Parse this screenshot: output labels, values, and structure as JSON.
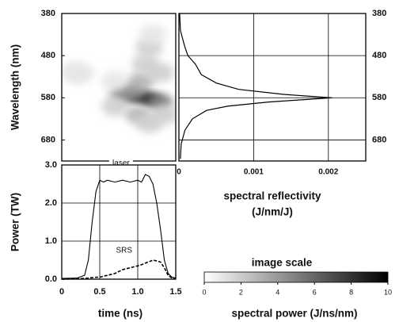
{
  "chart_data": [
    {
      "type": "heatmap",
      "ylabel": "Wavelength (nm)",
      "x": [
        1.1,
        1.0,
        1.2,
        0.9,
        0.8,
        1.3,
        0.95,
        1.05,
        1.1,
        1.15,
        1.2,
        1.0,
        1.15,
        0.7,
        0.7,
        1.3,
        1.35,
        0.15,
        0.25
      ],
      "y": [
        580,
        575,
        585,
        572,
        570,
        590,
        560,
        540,
        500,
        460,
        430,
        620,
        640,
        600,
        540,
        520,
        620,
        520,
        522
      ],
      "values": [
        10,
        9,
        8,
        7,
        5,
        5,
        4,
        3,
        2,
        2,
        1,
        3,
        2,
        2,
        1,
        2,
        2,
        1,
        1
      ],
      "xlim": [
        0,
        1.5
      ],
      "ylim": [
        380,
        730
      ],
      "yticks": [
        380,
        480,
        580,
        680
      ]
    },
    {
      "type": "profile",
      "xlabel": "spectral reflectivity",
      "xunits": "(J/nm/J)",
      "color": "#000000",
      "wavelength": [
        380,
        420,
        440,
        460,
        480,
        500,
        525,
        545,
        560,
        572,
        580,
        590,
        600,
        610,
        630,
        657,
        690,
        725
      ],
      "values": [
        1e-05,
        2e-05,
        5e-05,
        8e-05,
        0.00012,
        0.00022,
        0.0003,
        0.0005,
        0.0008,
        0.0014,
        0.00205,
        0.0012,
        0.00065,
        0.00037,
        0.00018,
        8e-05,
        3e-05,
        2e-05
      ],
      "xlim": [
        0,
        0.0025
      ],
      "xticks": [
        0,
        0.001,
        0.002
      ],
      "ylim": [
        380,
        730
      ],
      "yticks": [
        380,
        480,
        580,
        680
      ],
      "grid": true
    },
    {
      "type": "line",
      "xlabel": "time (ns)",
      "ylabel": "Power (TW)",
      "x": [
        0,
        0.2,
        0.3,
        0.35,
        0.4,
        0.45,
        0.5,
        0.55,
        0.6,
        0.7,
        0.8,
        0.9,
        1.0,
        1.05,
        1.1,
        1.15,
        1.2,
        1.25,
        1.3,
        1.35,
        1.4,
        1.45,
        1.5
      ],
      "series": [
        {
          "name": "laser",
          "color": "#000000",
          "dashed": false,
          "values": [
            0.02,
            0.03,
            0.1,
            0.5,
            1.5,
            2.3,
            2.6,
            2.55,
            2.6,
            2.55,
            2.6,
            2.55,
            2.6,
            2.55,
            2.75,
            2.7,
            2.5,
            2.0,
            1.3,
            0.5,
            0.15,
            0.05,
            0.03
          ]
        },
        {
          "name": "SRS",
          "color": "#000000",
          "dashed": true,
          "values": [
            0,
            0.01,
            0.02,
            0.03,
            0.04,
            0.05,
            0.05,
            0.08,
            0.1,
            0.15,
            0.25,
            0.3,
            0.35,
            0.38,
            0.42,
            0.46,
            0.5,
            0.48,
            0.45,
            0.3,
            0.1,
            0.03,
            0.01
          ]
        }
      ],
      "xlim": [
        0,
        1.5
      ],
      "xticks": [
        0,
        0.5,
        {
          "value": 1.0,
          "label": "1.0"
        },
        1.5
      ],
      "ylim": [
        0,
        3
      ],
      "yticks": [
        {
          "value": 0,
          "label": "0.0"
        },
        {
          "value": 1,
          "label": "1.0"
        },
        {
          "value": 2,
          "label": "2.0"
        },
        {
          "value": 3,
          "label": "3.0"
        }
      ],
      "grid": true
    },
    {
      "type": "colorbar",
      "title": "image scale",
      "label": "spectral power (J/ns/nm)",
      "lim": [
        0,
        10
      ],
      "ticks": [
        0,
        2,
        4,
        6,
        8,
        10
      ],
      "colors": [
        "#ffffff",
        "#000000"
      ]
    }
  ]
}
